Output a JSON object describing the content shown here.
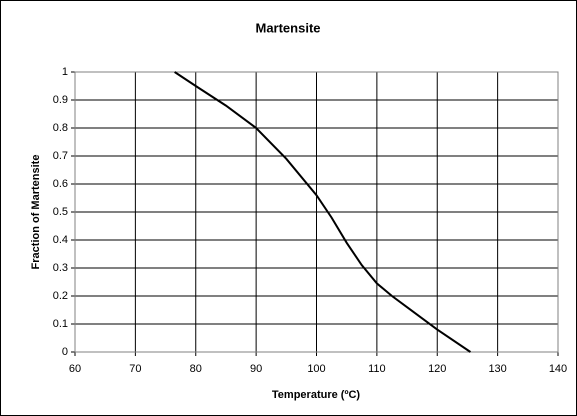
{
  "chart_data": {
    "type": "line",
    "title": "Martensite",
    "x_label": "Temperature (ºC)",
    "y_label": "Fraction of Martensite",
    "x": [
      76.5,
      80,
      85,
      90,
      95,
      100,
      102.5,
      105,
      107.5,
      110,
      112.5,
      115,
      120,
      125.5
    ],
    "values": [
      1.0,
      0.95,
      0.88,
      0.8,
      0.69,
      0.56,
      0.48,
      0.39,
      0.31,
      0.245,
      0.2,
      0.16,
      0.08,
      0.0
    ],
    "color": "#000000",
    "xlim": [
      60,
      140
    ],
    "xticks": [
      60,
      70,
      80,
      90,
      100,
      110,
      120,
      130,
      140
    ],
    "ylim": [
      0,
      1
    ],
    "yticks": [
      0,
      0.1,
      0.2,
      0.3,
      0.4,
      0.5,
      0.6,
      0.7,
      0.8,
      0.9,
      1
    ],
    "grid": true
  }
}
